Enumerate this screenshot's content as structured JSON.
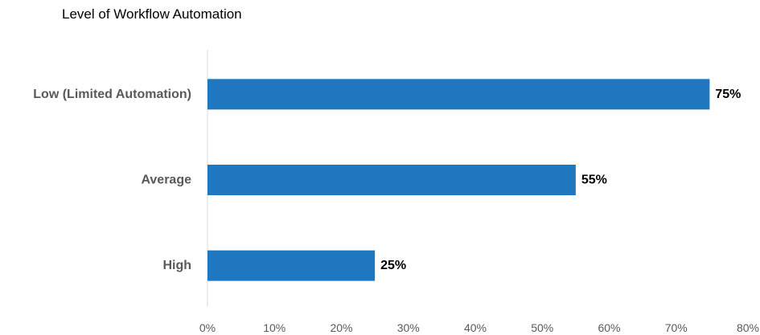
{
  "chart_data": {
    "type": "bar",
    "orientation": "horizontal",
    "title": "Level of Workflow Automation",
    "categories": [
      "Low (Limited Automation)",
      "Average",
      "High"
    ],
    "values": [
      75,
      55,
      25
    ],
    "value_labels": [
      "75%",
      "55%",
      "25%"
    ],
    "xlim": [
      0,
      80
    ],
    "x_ticks": [
      "0%",
      "10%",
      "20%",
      "30%",
      "40%",
      "50%",
      "60%",
      "70%",
      "80%"
    ],
    "xlabel": "",
    "ylabel": "",
    "grid": false,
    "legend": "none",
    "bar_color": "#1F77BF"
  }
}
